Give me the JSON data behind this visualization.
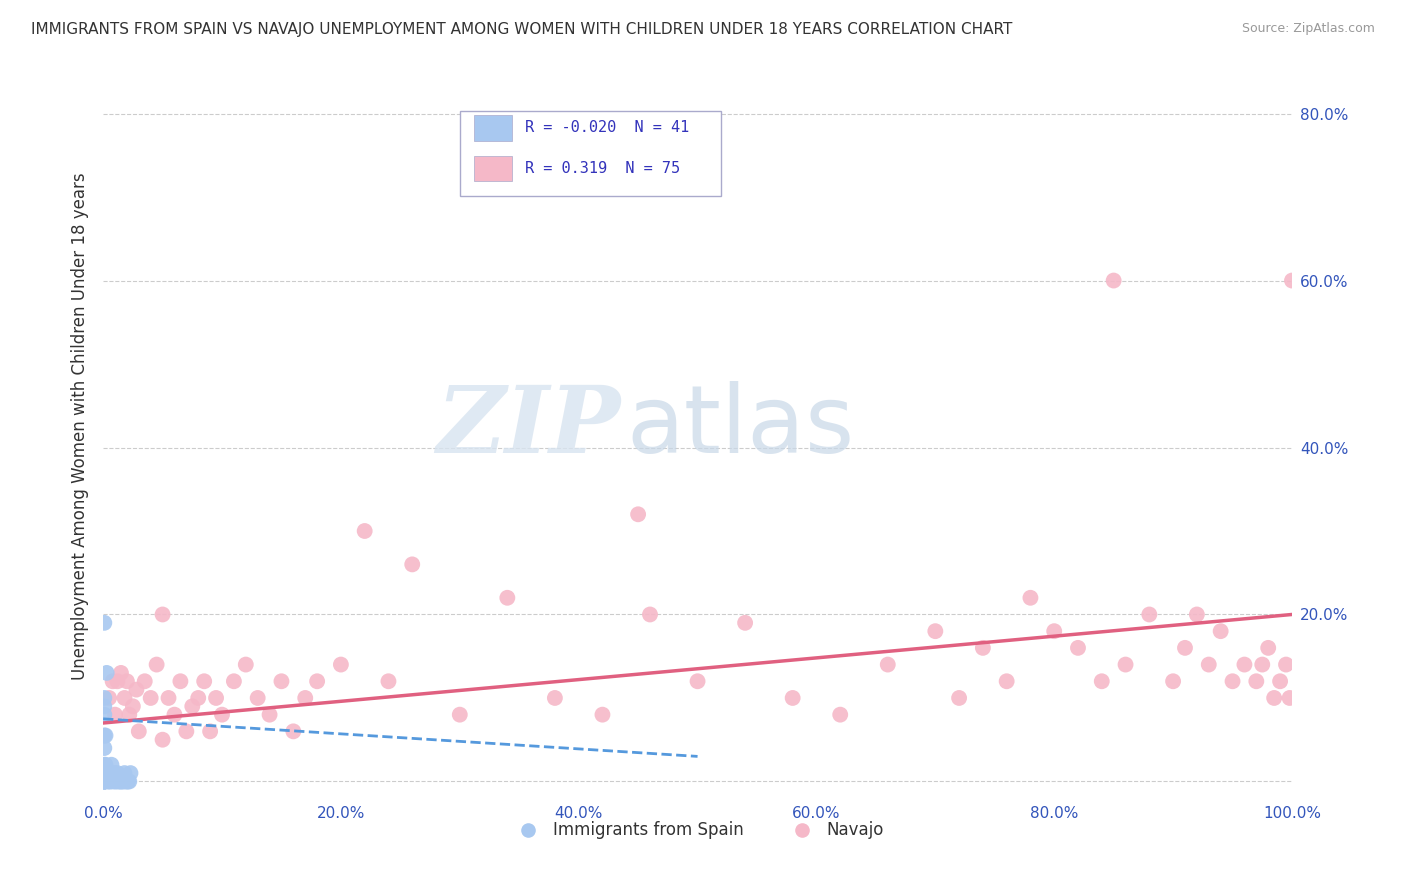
{
  "title": "IMMIGRANTS FROM SPAIN VS NAVAJO UNEMPLOYMENT AMONG WOMEN WITH CHILDREN UNDER 18 YEARS CORRELATION CHART",
  "source": "Source: ZipAtlas.com",
  "ylabel": "Unemployment Among Women with Children Under 18 years",
  "legend_labels": [
    "Immigrants from Spain",
    "Navajo"
  ],
  "legend_R": [
    -0.02,
    0.319
  ],
  "legend_N": [
    41,
    75
  ],
  "xlim": [
    0.0,
    1.0
  ],
  "ylim": [
    -0.02,
    0.87
  ],
  "xticks": [
    0.0,
    0.2,
    0.4,
    0.6,
    0.8,
    1.0
  ],
  "yticks": [
    0.0,
    0.2,
    0.4,
    0.6,
    0.8
  ],
  "xtick_labels": [
    "0.0%",
    "20.0%",
    "40.0%",
    "60.0%",
    "80.0%",
    "100.0%"
  ],
  "ytick_labels": [
    "",
    "20.0%",
    "40.0%",
    "60.0%",
    "80.0%"
  ],
  "color_spain": "#a8c8f0",
  "color_navajo": "#f5b8c8",
  "trendline_spain_color": "#5599dd",
  "trendline_navajo_color": "#e06080",
  "watermark_zip": "ZIP",
  "watermark_atlas": "atlas",
  "background_color": "#ffffff",
  "grid_color": "#cccccc",
  "spain_x": [
    0.001,
    0.001,
    0.001,
    0.001,
    0.001,
    0.001,
    0.001,
    0.001,
    0.001,
    0.001,
    0.001,
    0.001,
    0.001,
    0.001,
    0.001,
    0.001,
    0.002,
    0.002,
    0.002,
    0.003,
    0.003,
    0.004,
    0.005,
    0.006,
    0.007,
    0.008,
    0.009,
    0.01,
    0.011,
    0.012,
    0.013,
    0.014,
    0.015,
    0.016,
    0.017,
    0.018,
    0.019,
    0.02,
    0.021,
    0.022,
    0.023
  ],
  "spain_y": [
    0.0,
    0.0,
    0.0,
    0.0,
    0.0,
    0.0,
    0.0,
    0.01,
    0.01,
    0.02,
    0.04,
    0.055,
    0.08,
    0.09,
    0.1,
    0.19,
    0.01,
    0.02,
    0.055,
    0.01,
    0.13,
    0.0,
    0.0,
    0.0,
    0.02,
    0.0,
    0.01,
    0.0,
    0.0,
    0.01,
    0.0,
    0.0,
    0.0,
    0.0,
    0.0,
    0.01,
    0.0,
    0.0,
    0.0,
    0.0,
    0.01
  ],
  "navajo_x": [
    0.005,
    0.008,
    0.01,
    0.012,
    0.015,
    0.018,
    0.02,
    0.022,
    0.025,
    0.028,
    0.03,
    0.035,
    0.04,
    0.045,
    0.05,
    0.055,
    0.06,
    0.065,
    0.07,
    0.075,
    0.08,
    0.085,
    0.09,
    0.095,
    0.1,
    0.11,
    0.12,
    0.13,
    0.14,
    0.15,
    0.16,
    0.17,
    0.18,
    0.2,
    0.22,
    0.24,
    0.26,
    0.3,
    0.34,
    0.38,
    0.42,
    0.46,
    0.5,
    0.54,
    0.58,
    0.62,
    0.66,
    0.7,
    0.72,
    0.74,
    0.76,
    0.78,
    0.8,
    0.82,
    0.84,
    0.86,
    0.88,
    0.9,
    0.91,
    0.92,
    0.93,
    0.94,
    0.95,
    0.96,
    0.97,
    0.975,
    0.98,
    0.985,
    0.99,
    0.995,
    0.998,
    1.0,
    0.05,
    0.45,
    0.85
  ],
  "navajo_y": [
    0.1,
    0.12,
    0.08,
    0.12,
    0.13,
    0.1,
    0.12,
    0.08,
    0.09,
    0.11,
    0.06,
    0.12,
    0.1,
    0.14,
    0.05,
    0.1,
    0.08,
    0.12,
    0.06,
    0.09,
    0.1,
    0.12,
    0.06,
    0.1,
    0.08,
    0.12,
    0.14,
    0.1,
    0.08,
    0.12,
    0.06,
    0.1,
    0.12,
    0.14,
    0.3,
    0.12,
    0.26,
    0.08,
    0.22,
    0.1,
    0.08,
    0.2,
    0.12,
    0.19,
    0.1,
    0.08,
    0.14,
    0.18,
    0.1,
    0.16,
    0.12,
    0.22,
    0.18,
    0.16,
    0.12,
    0.14,
    0.2,
    0.12,
    0.16,
    0.2,
    0.14,
    0.18,
    0.12,
    0.14,
    0.12,
    0.14,
    0.16,
    0.1,
    0.12,
    0.14,
    0.1,
    0.6,
    0.2,
    0.32,
    0.6
  ],
  "navajo_trendline_x0": 0.0,
  "navajo_trendline_x1": 1.0,
  "navajo_trendline_y0": 0.07,
  "navajo_trendline_y1": 0.2,
  "spain_trendline_x0": 0.0,
  "spain_trendline_x1": 0.5,
  "spain_trendline_y0": 0.075,
  "spain_trendline_y1": 0.03
}
